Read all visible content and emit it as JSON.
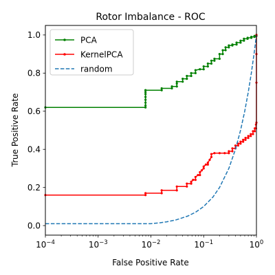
{
  "chart_data": {
    "type": "line",
    "title": "Rotor Imbalance - ROC",
    "xlabel": "False Positive Rate",
    "ylabel": "True Positive Rate",
    "xscale": "log",
    "xlim": [
      0.0001,
      1
    ],
    "ylim": [
      -0.05,
      1.05
    ],
    "xticks": [
      {
        "value": 0.0001,
        "base": "10",
        "exp": "−4"
      },
      {
        "value": 0.001,
        "base": "10",
        "exp": "−3"
      },
      {
        "value": 0.01,
        "base": "10",
        "exp": "−2"
      },
      {
        "value": 0.1,
        "base": "10",
        "exp": "−1"
      },
      {
        "value": 1,
        "base": "10",
        "exp": "0"
      }
    ],
    "yticks": [
      {
        "value": 0.0,
        "label": "0.0"
      },
      {
        "value": 0.2,
        "label": "0.2"
      },
      {
        "value": 0.4,
        "label": "0.4"
      },
      {
        "value": 0.6,
        "label": "0.6"
      },
      {
        "value": 0.8,
        "label": "0.8"
      },
      {
        "value": 1.0,
        "label": "1.0"
      }
    ],
    "grid": false,
    "legend_position": "top-left",
    "series": [
      {
        "name": "PCA",
        "color": "#008000",
        "style": "solid-marker",
        "x": [
          0.0001,
          0.0079,
          0.0079,
          0.0079,
          0.0079,
          0.0079,
          0.0079,
          0.0079,
          0.0079,
          0.0079,
          0.016,
          0.016,
          0.025,
          0.025,
          0.031,
          0.031,
          0.031,
          0.04,
          0.04,
          0.048,
          0.048,
          0.058,
          0.058,
          0.07,
          0.07,
          0.085,
          0.1,
          0.1,
          0.12,
          0.12,
          0.14,
          0.14,
          0.16,
          0.16,
          0.2,
          0.2,
          0.23,
          0.23,
          0.26,
          0.26,
          0.3,
          0.3,
          0.35,
          0.35,
          0.42,
          0.42,
          0.5,
          0.5,
          0.58,
          0.58,
          0.68,
          0.68,
          0.8,
          0.8,
          0.92,
          0.92,
          1.0,
          1.0
        ],
        "y": [
          0.62,
          0.62,
          0.63,
          0.645,
          0.66,
          0.675,
          0.69,
          0.7,
          0.71,
          0.71,
          0.71,
          0.72,
          0.72,
          0.73,
          0.73,
          0.745,
          0.755,
          0.755,
          0.77,
          0.77,
          0.785,
          0.785,
          0.8,
          0.8,
          0.815,
          0.82,
          0.82,
          0.835,
          0.835,
          0.85,
          0.85,
          0.865,
          0.865,
          0.875,
          0.875,
          0.9,
          0.9,
          0.92,
          0.92,
          0.935,
          0.935,
          0.945,
          0.945,
          0.95,
          0.95,
          0.96,
          0.96,
          0.97,
          0.97,
          0.98,
          0.98,
          0.985,
          0.985,
          0.99,
          0.99,
          0.995,
          0.995,
          1.0
        ]
      },
      {
        "name": "KernelPCA",
        "color": "#ff0000",
        "style": "solid-marker",
        "x": [
          0.0001,
          0.0079,
          0.0079,
          0.016,
          0.016,
          0.031,
          0.031,
          0.048,
          0.048,
          0.058,
          0.058,
          0.063,
          0.07,
          0.07,
          0.078,
          0.085,
          0.085,
          0.092,
          0.1,
          0.1,
          0.11,
          0.12,
          0.12,
          0.13,
          0.14,
          0.14,
          0.16,
          0.2,
          0.25,
          0.3,
          0.3,
          0.35,
          0.35,
          0.4,
          0.4,
          0.45,
          0.45,
          0.5,
          0.5,
          0.56,
          0.56,
          0.62,
          0.62,
          0.7,
          0.7,
          0.78,
          0.78,
          0.86,
          0.86,
          0.93,
          0.93,
          0.98,
          0.98,
          1.0,
          1.0,
          1.0,
          1.0
        ],
        "y": [
          0.16,
          0.16,
          0.17,
          0.17,
          0.185,
          0.185,
          0.205,
          0.205,
          0.22,
          0.22,
          0.23,
          0.24,
          0.24,
          0.255,
          0.265,
          0.265,
          0.28,
          0.29,
          0.3,
          0.31,
          0.32,
          0.32,
          0.33,
          0.345,
          0.36,
          0.375,
          0.38,
          0.38,
          0.38,
          0.38,
          0.39,
          0.39,
          0.405,
          0.405,
          0.42,
          0.42,
          0.43,
          0.43,
          0.44,
          0.44,
          0.45,
          0.45,
          0.46,
          0.46,
          0.47,
          0.47,
          0.48,
          0.48,
          0.495,
          0.495,
          0.51,
          0.51,
          0.53,
          0.54,
          0.75,
          0.9,
          1.0
        ]
      },
      {
        "name": "random",
        "color": "#1f77b4",
        "style": "dashed",
        "x": [
          0.0001,
          0.0002,
          0.0005,
          0.001,
          0.002,
          0.005,
          0.01,
          0.015,
          0.02,
          0.03,
          0.05,
          0.07,
          0.1,
          0.15,
          0.2,
          0.3,
          0.4,
          0.5,
          0.6,
          0.7,
          0.8,
          0.9,
          0.95,
          1.0
        ],
        "y": [
          0.01,
          0.01,
          0.01,
          0.01,
          0.01,
          0.01,
          0.01,
          0.015,
          0.02,
          0.03,
          0.05,
          0.07,
          0.1,
          0.15,
          0.2,
          0.3,
          0.4,
          0.5,
          0.6,
          0.7,
          0.8,
          0.9,
          0.95,
          1.0
        ]
      }
    ]
  }
}
